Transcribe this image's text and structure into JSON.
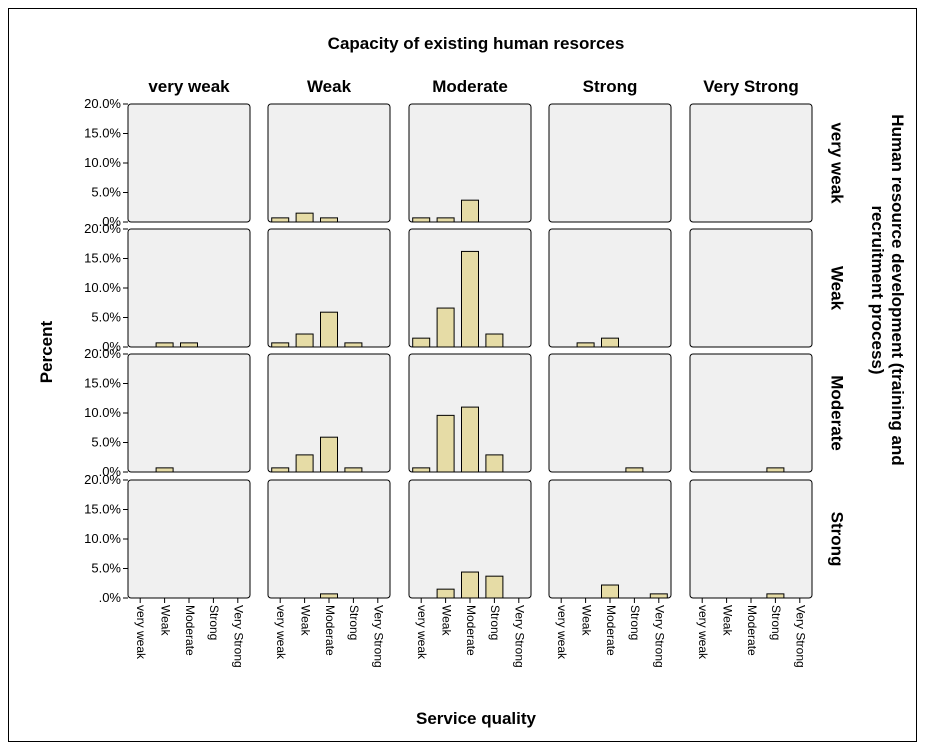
{
  "chart_data": {
    "type": "bar",
    "title": "Capacity of existing human resorces",
    "xlabel": "Service quality",
    "ylabel": "Percent",
    "row_title": "Human resource development  (training and recruitment process)",
    "col_labels": [
      "very weak",
      "Weak",
      "Moderate",
      "Strong",
      "Very Strong"
    ],
    "row_labels": [
      "very weak",
      "Weak",
      "Moderate",
      "Strong"
    ],
    "categories": [
      "very weak",
      "Weak",
      "Moderate",
      "Strong",
      "Very Strong"
    ],
    "y_ticks": [
      ".0%",
      "5.0%",
      "10.0%",
      "15.0%",
      "20.0%"
    ],
    "ylim": [
      0,
      20
    ],
    "bar_color": "#e6dca6",
    "panel_bg": "#f0f0f0",
    "panels": [
      [
        [
          0,
          0,
          0,
          0,
          0
        ],
        [
          0.7,
          1.5,
          0.7,
          0,
          0
        ],
        [
          0.7,
          0.7,
          3.7,
          0,
          0
        ],
        [
          0,
          0,
          0,
          0,
          0
        ],
        [
          0,
          0,
          0,
          0,
          0
        ]
      ],
      [
        [
          0,
          0.7,
          0.7,
          0,
          0
        ],
        [
          0.7,
          2.2,
          5.9,
          0.7,
          0
        ],
        [
          1.5,
          6.6,
          16.2,
          2.2,
          0
        ],
        [
          0,
          0.7,
          1.5,
          0,
          0
        ],
        [
          0,
          0,
          0,
          0,
          0
        ]
      ],
      [
        [
          0,
          0.7,
          0,
          0,
          0
        ],
        [
          0.7,
          2.9,
          5.9,
          0.7,
          0
        ],
        [
          0.7,
          9.6,
          11.0,
          2.9,
          0
        ],
        [
          0,
          0,
          0,
          0.7,
          0
        ],
        [
          0,
          0,
          0,
          0.7,
          0
        ]
      ],
      [
        [
          0,
          0,
          0,
          0,
          0
        ],
        [
          0,
          0,
          0.7,
          0,
          0
        ],
        [
          0,
          1.5,
          4.4,
          3.7,
          0
        ],
        [
          0,
          0,
          2.2,
          0,
          0.7
        ],
        [
          0,
          0,
          0,
          0.7,
          0
        ]
      ]
    ]
  }
}
